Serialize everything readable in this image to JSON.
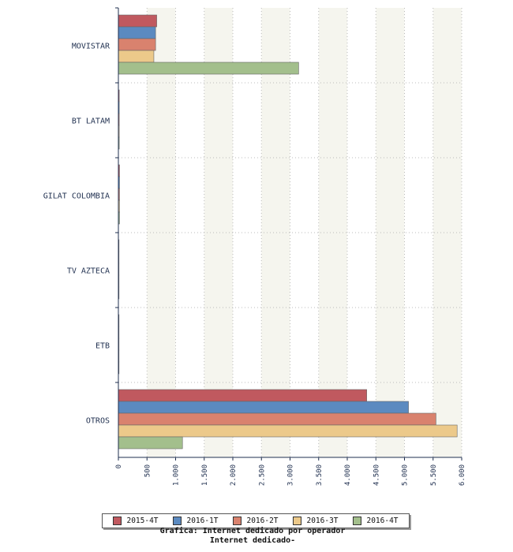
{
  "chart_data": {
    "type": "bar",
    "orientation": "horizontal",
    "categories": [
      "MOVISTAR",
      "BT LATAM",
      "GILAT COLOMBIA",
      "TV AZTECA",
      "ETB",
      "OTROS"
    ],
    "series": [
      {
        "name": "2015-4T",
        "color": "#c0595f",
        "values": [
          670,
          15,
          20,
          10,
          10,
          4340
        ]
      },
      {
        "name": "2016-1T",
        "color": "#5b8ac0",
        "values": [
          650,
          15,
          20,
          10,
          10,
          5070
        ]
      },
      {
        "name": "2016-2T",
        "color": "#d9826e",
        "values": [
          650,
          15,
          20,
          10,
          10,
          5550
        ]
      },
      {
        "name": "2016-3T",
        "color": "#ecc98a",
        "values": [
          620,
          15,
          20,
          10,
          10,
          5920
        ]
      },
      {
        "name": "2016-4T",
        "color": "#a3bf8c",
        "values": [
          3150,
          15,
          20,
          10,
          10,
          1120
        ]
      }
    ],
    "xlim": [
      0,
      6000
    ],
    "xticks": [
      0,
      500,
      1000,
      1500,
      2000,
      2500,
      3000,
      3500,
      4000,
      4500,
      5000,
      5500,
      6000
    ],
    "xtick_labels": [
      "0",
      "500",
      "1.000",
      "1.500",
      "2.000",
      "2.500",
      "3.000",
      "3.500",
      "4.000",
      "4.500",
      "5.000",
      "5.500",
      "6.000"
    ],
    "grid": true,
    "legend_position": "bottom"
  },
  "caption": {
    "line1": "Grafica: Internet dedicado por operador",
    "line2": "Internet dedicado-"
  }
}
